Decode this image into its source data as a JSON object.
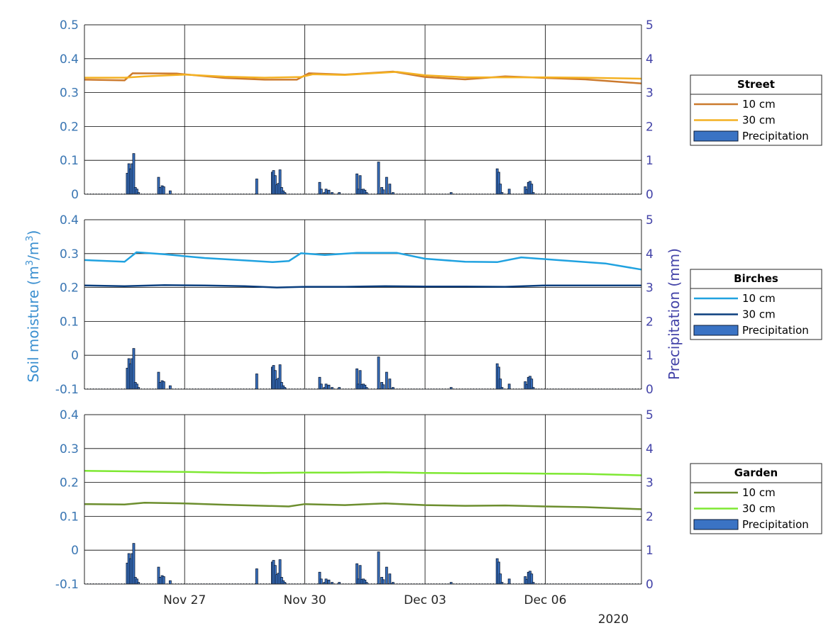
{
  "chart_data": {
    "type": "line",
    "x_axis": {
      "ticks": [
        {
          "day": 27,
          "label": "Nov 27"
        },
        {
          "day": 30,
          "label": "Nov 30"
        },
        {
          "day": 33,
          "label": "Dec 03"
        },
        {
          "day": 36,
          "label": "Dec 06"
        }
      ],
      "range_days": [
        24.5,
        38.4
      ],
      "year_label": "2020"
    },
    "ylabel_left": "Soil moisture (m³/m³)",
    "ylabel_left_parts": {
      "base": "Soil moisture (m",
      "sup1": "3",
      "mid": "/m",
      "sup2": "3",
      "end": ")"
    },
    "ylabel_right": "Precipitation (mm)",
    "right_axis": {
      "ylim": [
        0,
        5
      ],
      "ticks": [
        "0",
        "1",
        "2",
        "3",
        "4",
        "5"
      ]
    },
    "precipitation_mm": {
      "days": [
        25.57,
        25.61,
        25.65,
        25.69,
        25.73,
        25.77,
        25.81,
        25.85,
        26.35,
        26.39,
        26.44,
        26.48,
        26.64,
        28.8,
        29.19,
        29.22,
        29.26,
        29.3,
        29.34,
        29.38,
        29.42,
        29.46,
        29.5,
        30.37,
        30.41,
        30.49,
        30.53,
        30.6,
        30.68,
        30.86,
        31.3,
        31.34,
        31.38,
        31.42,
        31.46,
        31.5,
        31.54,
        31.84,
        31.92,
        31.96,
        32.04,
        32.12,
        32.2,
        33.65,
        34.8,
        34.84,
        34.88,
        34.92,
        35.1,
        35.5,
        35.54,
        35.58,
        35.62,
        35.66,
        35.7
      ],
      "values": [
        0.62,
        0.9,
        0.75,
        0.9,
        1.2,
        0.2,
        0.15,
        0.05,
        0.5,
        0.2,
        0.25,
        0.22,
        0.1,
        0.45,
        0.65,
        0.7,
        0.55,
        0.28,
        0.32,
        0.72,
        0.2,
        0.1,
        0.05,
        0.35,
        0.15,
        0.05,
        0.15,
        0.12,
        0.05,
        0.05,
        0.6,
        0.15,
        0.55,
        0.14,
        0.15,
        0.12,
        0.05,
        0.95,
        0.2,
        0.13,
        0.5,
        0.3,
        0.05,
        0.05,
        0.75,
        0.65,
        0.3,
        0.05,
        0.15,
        0.22,
        0.14,
        0.35,
        0.38,
        0.3,
        0.05
      ]
    },
    "panels": [
      {
        "id": "street",
        "legend_title": "Street",
        "ylim": [
          0,
          0.5
        ],
        "yticks": [
          "0",
          "0.1",
          "0.2",
          "0.3",
          "0.4",
          "0.5"
        ],
        "series": [
          {
            "name": "10 cm",
            "color": "#cc7a2e",
            "x": [
              24.5,
              25.5,
              25.7,
              26.8,
              28.0,
              29.0,
              29.8,
              30.1,
              31.0,
              32.2,
              33.0,
              34.0,
              35.0,
              36.0,
              37.0,
              38.4
            ],
            "y": [
              0.338,
              0.336,
              0.357,
              0.356,
              0.343,
              0.338,
              0.338,
              0.357,
              0.353,
              0.362,
              0.346,
              0.339,
              0.348,
              0.343,
              0.339,
              0.327
            ]
          },
          {
            "name": "30 cm",
            "color": "#f4b122",
            "x": [
              24.5,
              25.5,
              26.0,
              27.0,
              28.0,
              29.0,
              29.9,
              30.2,
              31.0,
              32.3,
              33.0,
              34.0,
              35.0,
              36.0,
              37.0,
              38.4
            ],
            "y": [
              0.344,
              0.344,
              0.348,
              0.353,
              0.347,
              0.344,
              0.346,
              0.354,
              0.352,
              0.361,
              0.351,
              0.345,
              0.345,
              0.345,
              0.344,
              0.341
            ]
          },
          {
            "name": "Precipitation",
            "color": "#3a73c4"
          }
        ]
      },
      {
        "id": "birches",
        "legend_title": "Birches",
        "ylim": [
          -0.1,
          0.4
        ],
        "yticks": [
          "-0.1",
          "0",
          "0.1",
          "0.2",
          "0.3",
          "0.4"
        ],
        "series": [
          {
            "name": "10 cm",
            "color": "#20a2e0",
            "x": [
              24.5,
              25.5,
              25.8,
              26.5,
              27.5,
              28.5,
              29.2,
              29.6,
              29.9,
              30.5,
              31.3,
              32.3,
              33.0,
              34.0,
              34.8,
              35.4,
              36.3,
              37.5,
              38.4
            ],
            "y": [
              0.281,
              0.276,
              0.304,
              0.298,
              0.287,
              0.28,
              0.275,
              0.278,
              0.301,
              0.296,
              0.302,
              0.302,
              0.285,
              0.276,
              0.275,
              0.289,
              0.281,
              0.271,
              0.253
            ]
          },
          {
            "name": "30 cm",
            "color": "#0b3f7f",
            "x": [
              24.5,
              25.5,
              26.5,
              27.5,
              28.5,
              29.3,
              30.0,
              31.0,
              32.0,
              33.0,
              34.0,
              35.0,
              36.0,
              37.0,
              38.4
            ],
            "y": [
              0.206,
              0.204,
              0.207,
              0.206,
              0.204,
              0.2,
              0.202,
              0.202,
              0.204,
              0.203,
              0.203,
              0.202,
              0.206,
              0.206,
              0.206
            ]
          },
          {
            "name": "Precipitation",
            "color": "#3a73c4"
          }
        ]
      },
      {
        "id": "garden",
        "legend_title": "Garden",
        "ylim": [
          -0.1,
          0.4
        ],
        "yticks": [
          "-0.1",
          "0",
          "0.1",
          "0.2",
          "0.3",
          "0.4"
        ],
        "series": [
          {
            "name": "10 cm",
            "color": "#6c8e2e",
            "x": [
              24.5,
              25.5,
              26.0,
              27.0,
              28.0,
              29.0,
              29.6,
              30.0,
              31.0,
              32.0,
              33.0,
              34.0,
              35.0,
              36.0,
              37.0,
              38.4
            ],
            "y": [
              0.136,
              0.135,
              0.14,
              0.138,
              0.134,
              0.131,
              0.129,
              0.136,
              0.133,
              0.138,
              0.133,
              0.131,
              0.132,
              0.129,
              0.127,
              0.121
            ]
          },
          {
            "name": "30 cm",
            "color": "#7ee832",
            "x": [
              24.5,
              26.0,
              27.0,
              28.0,
              29.0,
              30.0,
              31.0,
              32.0,
              33.0,
              34.0,
              35.0,
              36.0,
              37.0,
              38.4
            ],
            "y": [
              0.234,
              0.232,
              0.231,
              0.229,
              0.228,
              0.229,
              0.229,
              0.23,
              0.228,
              0.227,
              0.227,
              0.226,
              0.225,
              0.221
            ]
          },
          {
            "name": "Precipitation",
            "color": "#3a73c4"
          }
        ]
      }
    ]
  }
}
